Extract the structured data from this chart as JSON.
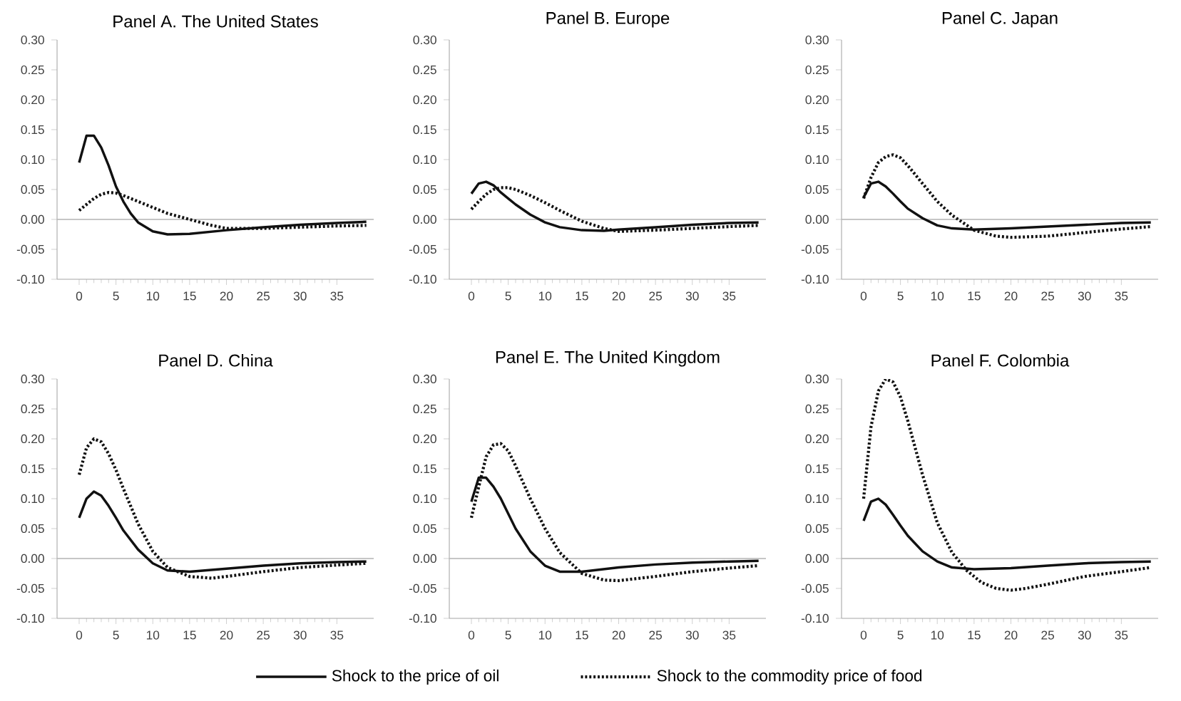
{
  "chart_data": [
    {
      "type": "line",
      "title": "Panel A. The United States",
      "legend": "bottom",
      "xlim": [
        -3,
        40
      ],
      "ylim": [
        -0.1,
        0.3
      ],
      "xticks": [
        0,
        5,
        10,
        15,
        20,
        25,
        30,
        35
      ],
      "yticks": [
        {
          "value": -0.1,
          "label": "-0.10"
        },
        {
          "value": -0.05,
          "label": "-0.05"
        },
        {
          "value": 0,
          "label": "0.00"
        },
        {
          "value": 0.05,
          "label": "0.05"
        },
        {
          "value": 0.1,
          "label": "0.10"
        },
        {
          "value": 0.15,
          "label": "0.15"
        },
        {
          "value": 0.2,
          "label": "0.20"
        },
        {
          "value": 0.25,
          "label": "0.25"
        },
        {
          "value": 0.3,
          "label": "0.30"
        }
      ],
      "ref_lines": [
        {
          "axis": "y",
          "value": 0,
          "color": "#b3b3b3"
        }
      ],
      "series": [
        {
          "name": "Shock to the price of oil",
          "color": "#111111",
          "line_style": "solid",
          "x": [
            0,
            1,
            2,
            3,
            4,
            5,
            6,
            7,
            8,
            10,
            12,
            15,
            20,
            25,
            30,
            35,
            39
          ],
          "values": [
            0.095,
            0.14,
            0.14,
            0.12,
            0.09,
            0.055,
            0.03,
            0.01,
            -0.005,
            -0.02,
            -0.025,
            -0.024,
            -0.018,
            -0.013,
            -0.009,
            -0.006,
            -0.004
          ]
        },
        {
          "name": "Shock to the commodity price of food",
          "color": "#111111",
          "line_style": "dotted",
          "x": [
            0,
            1,
            2,
            3,
            4,
            5,
            6,
            8,
            10,
            12,
            15,
            18,
            20,
            25,
            30,
            35,
            39
          ],
          "values": [
            0.015,
            0.025,
            0.035,
            0.042,
            0.045,
            0.044,
            0.04,
            0.03,
            0.02,
            0.01,
            0.0,
            -0.01,
            -0.015,
            -0.015,
            -0.013,
            -0.011,
            -0.01
          ]
        }
      ]
    },
    {
      "type": "line",
      "title": "Panel B. Europe",
      "xlim": [
        -3,
        40
      ],
      "ylim": [
        -0.1,
        0.3
      ],
      "xticks": [
        0,
        5,
        10,
        15,
        20,
        25,
        30,
        35
      ],
      "yticks": [
        {
          "value": -0.1,
          "label": "-0.10"
        },
        {
          "value": -0.05,
          "label": "-0.05"
        },
        {
          "value": 0,
          "label": "0.00"
        },
        {
          "value": 0.05,
          "label": "0.05"
        },
        {
          "value": 0.1,
          "label": "0.10"
        },
        {
          "value": 0.15,
          "label": "0.15"
        },
        {
          "value": 0.2,
          "label": "0.20"
        },
        {
          "value": 0.25,
          "label": "0.25"
        },
        {
          "value": 0.3,
          "label": "0.30"
        }
      ],
      "ref_lines": [
        {
          "axis": "y",
          "value": 0,
          "color": "#b3b3b3"
        }
      ],
      "series": [
        {
          "color": "#111111",
          "line_style": "solid",
          "x": [
            0,
            1,
            2,
            3,
            4,
            5,
            6,
            8,
            10,
            12,
            15,
            18,
            20,
            25,
            30,
            35,
            39
          ],
          "values": [
            0.043,
            0.06,
            0.063,
            0.057,
            0.045,
            0.035,
            0.025,
            0.008,
            -0.005,
            -0.013,
            -0.018,
            -0.019,
            -0.017,
            -0.013,
            -0.009,
            -0.006,
            -0.005
          ]
        },
        {
          "color": "#111111",
          "line_style": "dotted",
          "x": [
            0,
            1,
            2,
            3,
            4,
            5,
            6,
            8,
            10,
            12,
            15,
            18,
            20,
            25,
            30,
            35,
            39
          ],
          "values": [
            0.017,
            0.03,
            0.042,
            0.05,
            0.053,
            0.053,
            0.05,
            0.04,
            0.028,
            0.015,
            -0.003,
            -0.015,
            -0.02,
            -0.018,
            -0.015,
            -0.012,
            -0.01
          ]
        }
      ]
    },
    {
      "type": "line",
      "title": "Panel C. Japan",
      "xlim": [
        -3,
        40
      ],
      "ylim": [
        -0.1,
        0.3
      ],
      "xticks": [
        0,
        5,
        10,
        15,
        20,
        25,
        30,
        35
      ],
      "yticks": [
        {
          "value": -0.1,
          "label": "-0.10"
        },
        {
          "value": -0.05,
          "label": "-0.05"
        },
        {
          "value": 0,
          "label": "0.00"
        },
        {
          "value": 0.05,
          "label": "0.05"
        },
        {
          "value": 0.1,
          "label": "0.10"
        },
        {
          "value": 0.15,
          "label": "0.15"
        },
        {
          "value": 0.2,
          "label": "0.20"
        },
        {
          "value": 0.25,
          "label": "0.25"
        },
        {
          "value": 0.3,
          "label": "0.30"
        }
      ],
      "ref_lines": [
        {
          "axis": "y",
          "value": 0,
          "color": "#b3b3b3"
        }
      ],
      "series": [
        {
          "color": "#111111",
          "line_style": "solid",
          "x": [
            0,
            1,
            2,
            3,
            4,
            5,
            6,
            8,
            10,
            12,
            15,
            20,
            25,
            30,
            35,
            39
          ],
          "values": [
            0.037,
            0.06,
            0.063,
            0.055,
            0.043,
            0.03,
            0.018,
            0.002,
            -0.01,
            -0.015,
            -0.017,
            -0.015,
            -0.012,
            -0.009,
            -0.006,
            -0.005
          ]
        },
        {
          "color": "#111111",
          "line_style": "dotted",
          "x": [
            0,
            1,
            2,
            3,
            4,
            5,
            6,
            8,
            10,
            12,
            15,
            18,
            20,
            25,
            30,
            35,
            39
          ],
          "values": [
            0.035,
            0.07,
            0.095,
            0.105,
            0.108,
            0.103,
            0.09,
            0.06,
            0.03,
            0.007,
            -0.018,
            -0.028,
            -0.03,
            -0.028,
            -0.022,
            -0.016,
            -0.012
          ]
        }
      ]
    },
    {
      "type": "line",
      "title": "Panel D. China",
      "xlim": [
        -3,
        40
      ],
      "ylim": [
        -0.1,
        0.3
      ],
      "xticks": [
        0,
        5,
        10,
        15,
        20,
        25,
        30,
        35
      ],
      "yticks": [
        {
          "value": -0.1,
          "label": "-0.10"
        },
        {
          "value": -0.05,
          "label": "-0.05"
        },
        {
          "value": 0,
          "label": "0.00"
        },
        {
          "value": 0.05,
          "label": "0.05"
        },
        {
          "value": 0.1,
          "label": "0.10"
        },
        {
          "value": 0.15,
          "label": "0.15"
        },
        {
          "value": 0.2,
          "label": "0.20"
        },
        {
          "value": 0.25,
          "label": "0.25"
        },
        {
          "value": 0.3,
          "label": "0.30"
        }
      ],
      "ref_lines": [
        {
          "axis": "y",
          "value": 0,
          "color": "#b3b3b3"
        }
      ],
      "series": [
        {
          "color": "#111111",
          "line_style": "solid",
          "x": [
            0,
            1,
            2,
            3,
            4,
            5,
            6,
            8,
            10,
            12,
            15,
            20,
            25,
            30,
            35,
            39
          ],
          "values": [
            0.068,
            0.1,
            0.112,
            0.105,
            0.088,
            0.068,
            0.047,
            0.015,
            -0.008,
            -0.02,
            -0.022,
            -0.017,
            -0.012,
            -0.008,
            -0.006,
            -0.005
          ]
        },
        {
          "color": "#111111",
          "line_style": "dotted",
          "x": [
            0,
            1,
            2,
            3,
            4,
            5,
            6,
            8,
            10,
            12,
            15,
            18,
            20,
            25,
            30,
            35,
            39
          ],
          "values": [
            0.14,
            0.185,
            0.2,
            0.195,
            0.175,
            0.148,
            0.117,
            0.058,
            0.012,
            -0.015,
            -0.03,
            -0.033,
            -0.03,
            -0.022,
            -0.015,
            -0.011,
            -0.008
          ]
        }
      ]
    },
    {
      "type": "line",
      "title": "Panel E. The United Kingdom",
      "xlim": [
        -3,
        40
      ],
      "ylim": [
        -0.1,
        0.3
      ],
      "xticks": [
        0,
        5,
        10,
        15,
        20,
        25,
        30,
        35
      ],
      "yticks": [
        {
          "value": -0.1,
          "label": "-0.10"
        },
        {
          "value": -0.05,
          "label": "-0.05"
        },
        {
          "value": 0,
          "label": "0.00"
        },
        {
          "value": 0.05,
          "label": "0.05"
        },
        {
          "value": 0.1,
          "label": "0.10"
        },
        {
          "value": 0.15,
          "label": "0.15"
        },
        {
          "value": 0.2,
          "label": "0.20"
        },
        {
          "value": 0.25,
          "label": "0.25"
        },
        {
          "value": 0.3,
          "label": "0.30"
        }
      ],
      "ref_lines": [
        {
          "axis": "y",
          "value": 0,
          "color": "#b3b3b3"
        }
      ],
      "series": [
        {
          "color": "#111111",
          "line_style": "solid",
          "x": [
            0,
            1,
            2,
            3,
            4,
            5,
            6,
            8,
            10,
            12,
            15,
            20,
            25,
            30,
            35,
            39
          ],
          "values": [
            0.095,
            0.135,
            0.135,
            0.12,
            0.1,
            0.075,
            0.05,
            0.012,
            -0.012,
            -0.022,
            -0.022,
            -0.015,
            -0.01,
            -0.007,
            -0.005,
            -0.004
          ]
        },
        {
          "color": "#111111",
          "line_style": "dotted",
          "x": [
            0,
            1,
            2,
            3,
            4,
            5,
            6,
            8,
            10,
            12,
            15,
            18,
            20,
            25,
            30,
            35,
            39
          ],
          "values": [
            0.068,
            0.12,
            0.17,
            0.19,
            0.192,
            0.18,
            0.155,
            0.1,
            0.05,
            0.01,
            -0.025,
            -0.036,
            -0.037,
            -0.03,
            -0.022,
            -0.016,
            -0.012
          ]
        }
      ]
    },
    {
      "type": "line",
      "title": "Panel F. Colombia",
      "xlim": [
        -3,
        40
      ],
      "ylim": [
        -0.1,
        0.3
      ],
      "xticks": [
        0,
        5,
        10,
        15,
        20,
        25,
        30,
        35
      ],
      "yticks": [
        {
          "value": -0.1,
          "label": "-0.10"
        },
        {
          "value": -0.05,
          "label": "-0.05"
        },
        {
          "value": 0,
          "label": "0.00"
        },
        {
          "value": 0.05,
          "label": "0.05"
        },
        {
          "value": 0.1,
          "label": "0.10"
        },
        {
          "value": 0.15,
          "label": "0.15"
        },
        {
          "value": 0.2,
          "label": "0.20"
        },
        {
          "value": 0.25,
          "label": "0.25"
        },
        {
          "value": 0.3,
          "label": "0.30"
        }
      ],
      "ref_lines": [
        {
          "axis": "y",
          "value": 0,
          "color": "#b3b3b3"
        }
      ],
      "series": [
        {
          "color": "#111111",
          "line_style": "solid",
          "x": [
            0,
            1,
            2,
            3,
            4,
            5,
            6,
            8,
            10,
            12,
            15,
            20,
            25,
            30,
            35,
            39
          ],
          "values": [
            0.063,
            0.095,
            0.1,
            0.09,
            0.073,
            0.055,
            0.038,
            0.012,
            -0.005,
            -0.015,
            -0.018,
            -0.016,
            -0.012,
            -0.008,
            -0.006,
            -0.005
          ]
        },
        {
          "color": "#111111",
          "line_style": "dotted",
          "x": [
            0,
            1,
            2,
            3,
            4,
            5,
            6,
            8,
            10,
            12,
            14,
            16,
            18,
            20,
            22,
            25,
            30,
            35,
            39
          ],
          "values": [
            0.1,
            0.22,
            0.28,
            0.3,
            0.295,
            0.27,
            0.23,
            0.14,
            0.06,
            0.01,
            -0.02,
            -0.04,
            -0.05,
            -0.053,
            -0.05,
            -0.043,
            -0.03,
            -0.022,
            -0.015
          ]
        }
      ]
    }
  ]
}
